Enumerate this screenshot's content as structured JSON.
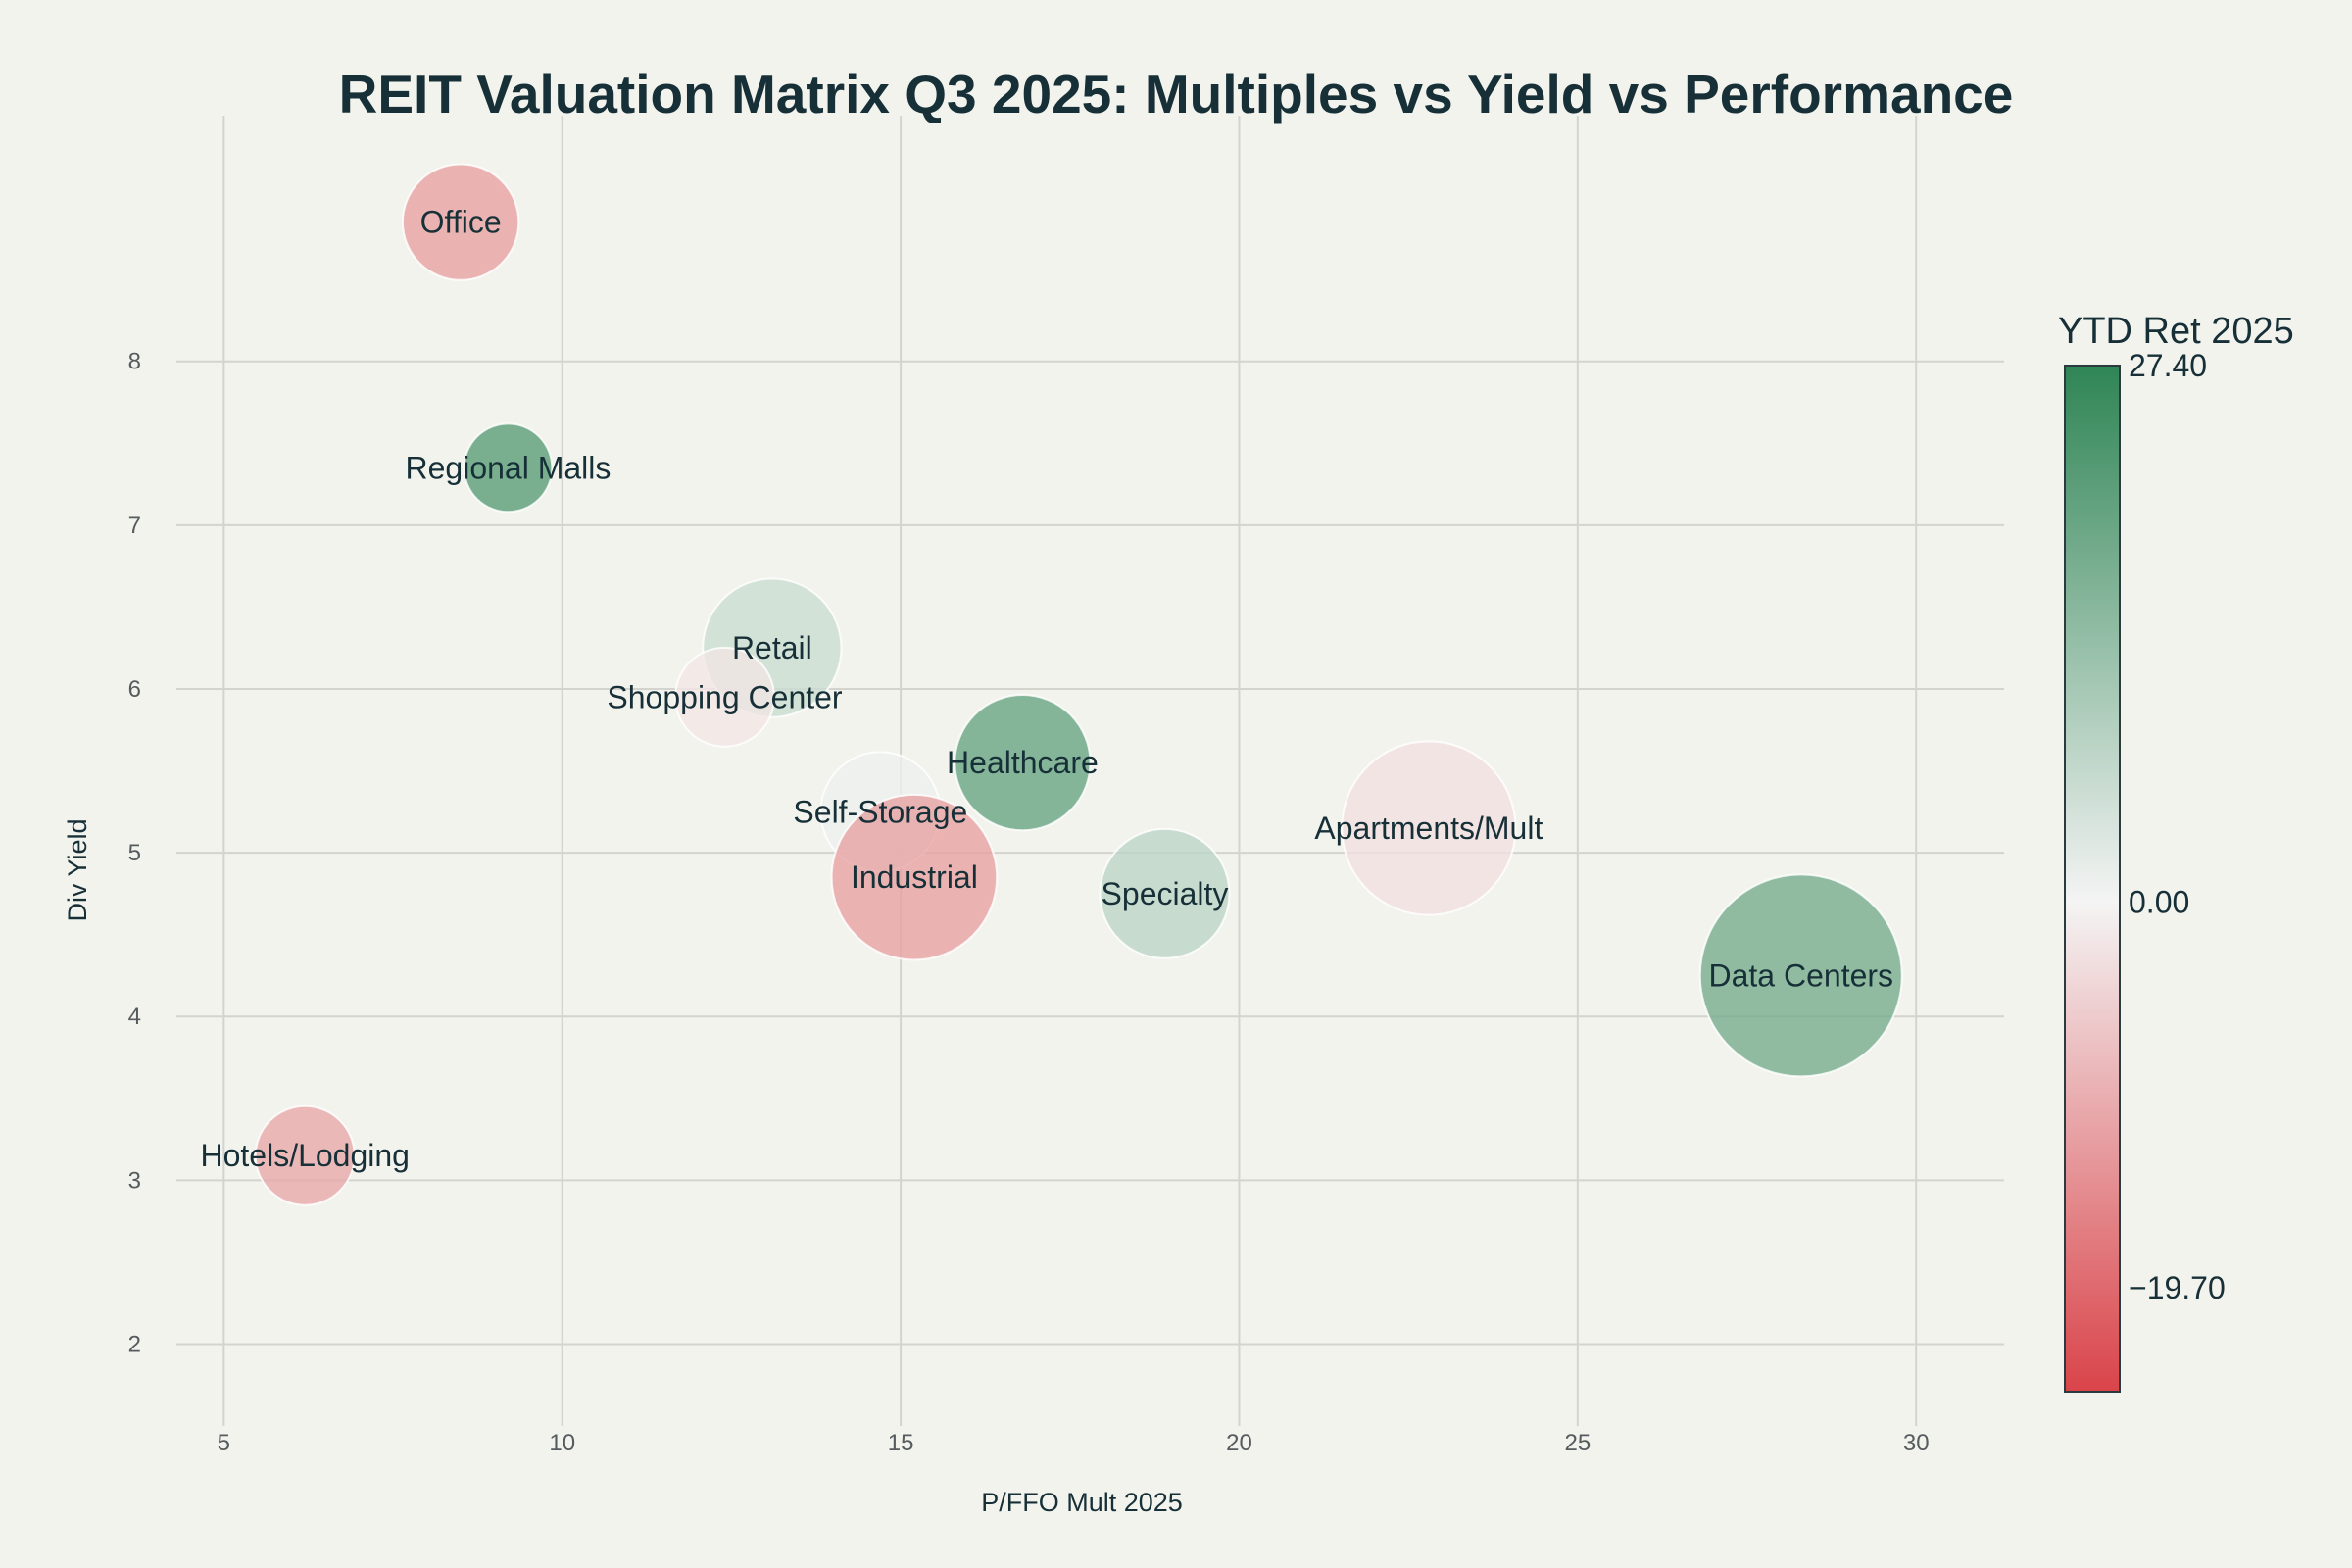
{
  "chart_data": {
    "type": "scatter",
    "subtype": "bubble",
    "title": "REIT Valuation Matrix Q3 2025: Multiples vs Yield vs Performance",
    "xlabel": "P/FFO Mult 2025",
    "ylabel": "Div Yield",
    "xlim": [
      4.3,
      31.3
    ],
    "ylim": [
      1.5,
      9.5
    ],
    "x_ticks": [
      5,
      10,
      15,
      20,
      25,
      30
    ],
    "y_ticks": [
      2,
      3,
      4,
      5,
      6,
      7,
      8
    ],
    "grid": true,
    "colorbar": {
      "title": "YTD Ret 2025",
      "min": -25,
      "max": 27.4,
      "ticks": [
        {
          "value": 27.4,
          "label": "27.40"
        },
        {
          "value": 0,
          "label": "0.00"
        },
        {
          "value": -19.7,
          "label": "−19.70"
        }
      ],
      "colors": {
        "low": "#d9444a",
        "mid": "#f4f4f4",
        "high": "#2f8555"
      }
    },
    "points": [
      {
        "name": "Office",
        "x": 8.5,
        "y": 8.85,
        "ytd": -12,
        "size": 0.33
      },
      {
        "name": "Regional Malls",
        "x": 9.2,
        "y": 7.35,
        "ytd": 22,
        "size": 0.19
      },
      {
        "name": "Retail",
        "x": 13.1,
        "y": 6.25,
        "ytd": 6,
        "size": 0.47
      },
      {
        "name": "Shopping Center",
        "x": 12.4,
        "y": 5.95,
        "ytd": -2,
        "size": 0.24
      },
      {
        "name": "Healthcare",
        "x": 16.8,
        "y": 5.55,
        "ytd": 20,
        "size": 0.45
      },
      {
        "name": "Self-Storage",
        "x": 14.7,
        "y": 5.25,
        "ytd": 1,
        "size": 0.35
      },
      {
        "name": "Industrial",
        "x": 15.2,
        "y": 4.85,
        "ytd": -12,
        "size": 0.67
      },
      {
        "name": "Specialty",
        "x": 18.9,
        "y": 4.75,
        "ytd": 8,
        "size": 0.41
      },
      {
        "name": "Apartments/Mult",
        "x": 22.8,
        "y": 5.15,
        "ytd": -3,
        "size": 0.74
      },
      {
        "name": "Data Centers",
        "x": 28.3,
        "y": 4.25,
        "ytd": 18,
        "size": 1.0
      },
      {
        "name": "Hotels/Lodging",
        "x": 6.2,
        "y": 3.15,
        "ytd": -11,
        "size": 0.24
      }
    ]
  }
}
